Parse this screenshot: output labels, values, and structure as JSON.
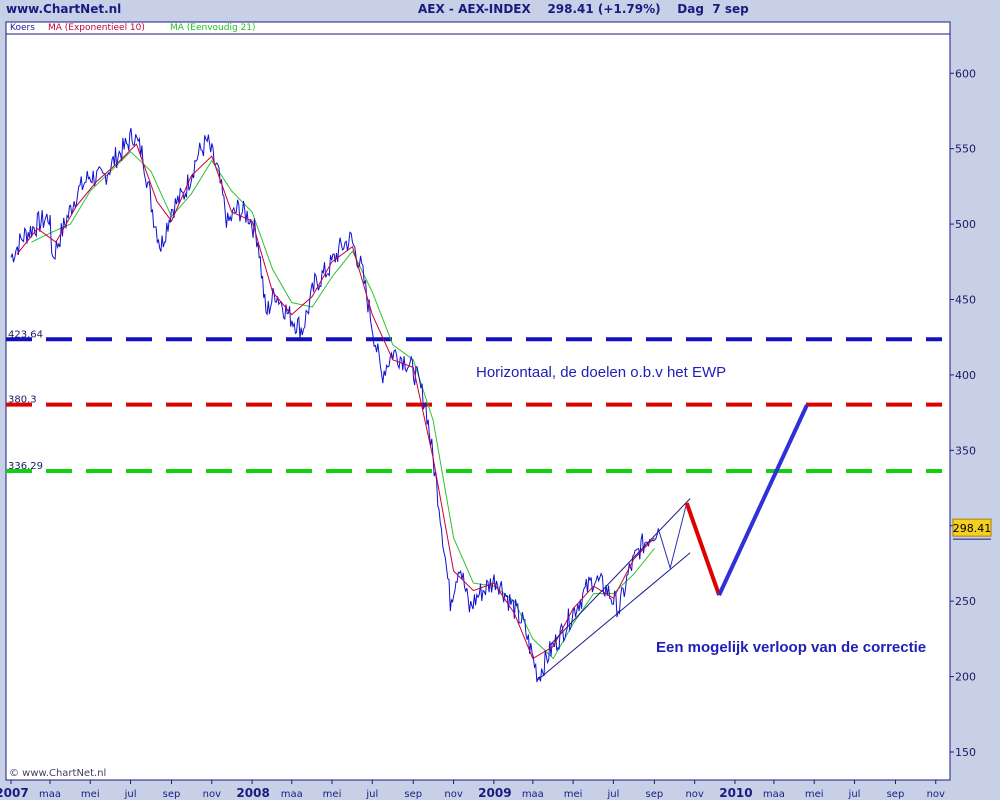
{
  "header": {
    "site": "www.ChartNet.nl",
    "title": "AEX - AEX-INDEX    298.41 (+1.79%)    Dag  7 sep"
  },
  "legend": [
    {
      "label": "Koers",
      "color": "#1A1AA0"
    },
    {
      "label": "MA (Exponentieel 10)",
      "color": "#C00040"
    },
    {
      "label": "MA (Eenvoudig 21)",
      "color": "#20C020"
    }
  ],
  "watermark": "© www.ChartNet.nl",
  "colors": {
    "price": "#1010D0",
    "ema": "#C8003C",
    "sma": "#30C030",
    "frame": "#1A1A80",
    "blue_level": "#1010C0",
    "red_level": "#E00000",
    "green_level": "#10D010",
    "annotation": "#2020B8"
  },
  "chart_data": {
    "type": "line",
    "title": "AEX - AEX-INDEX",
    "last_value_label": "298.41",
    "ylim": [
      130,
      630
    ],
    "y_ticks": [
      150,
      200,
      250,
      300,
      350,
      400,
      450,
      500,
      550,
      600
    ],
    "x_axis": {
      "start": "2007-01",
      "end": "2010-11",
      "tick_labels": [
        {
          "month": "2007-01",
          "label": "2007",
          "bold": true
        },
        {
          "month": "2007-03",
          "label": "maa"
        },
        {
          "month": "2007-05",
          "label": "mei"
        },
        {
          "month": "2007-07",
          "label": "jul"
        },
        {
          "month": "2007-09",
          "label": "sep"
        },
        {
          "month": "2007-11",
          "label": "nov"
        },
        {
          "month": "2008-01",
          "label": "2008",
          "bold": true
        },
        {
          "month": "2008-03",
          "label": "maa"
        },
        {
          "month": "2008-05",
          "label": "mei"
        },
        {
          "month": "2008-07",
          "label": "jul"
        },
        {
          "month": "2008-09",
          "label": "sep"
        },
        {
          "month": "2008-11",
          "label": "nov"
        },
        {
          "month": "2009-01",
          "label": "2009",
          "bold": true
        },
        {
          "month": "2009-03",
          "label": "maa"
        },
        {
          "month": "2009-05",
          "label": "mei"
        },
        {
          "month": "2009-07",
          "label": "jul"
        },
        {
          "month": "2009-09",
          "label": "sep"
        },
        {
          "month": "2009-11",
          "label": "nov"
        },
        {
          "month": "2010-01",
          "label": "2010",
          "bold": true
        },
        {
          "month": "2010-03",
          "label": "maa"
        },
        {
          "month": "2010-05",
          "label": "mei"
        },
        {
          "month": "2010-07",
          "label": "jul"
        },
        {
          "month": "2010-09",
          "label": "sep"
        },
        {
          "month": "2010-11",
          "label": "nov"
        }
      ]
    },
    "series": [
      {
        "name": "Koers",
        "points": [
          [
            "2007-01-01",
            478
          ],
          [
            "2007-01-20",
            492
          ],
          [
            "2007-02-10",
            500
          ],
          [
            "2007-02-28",
            505
          ],
          [
            "2007-03-05",
            478
          ],
          [
            "2007-03-20",
            496
          ],
          [
            "2007-04-10",
            520
          ],
          [
            "2007-04-30",
            532
          ],
          [
            "2007-05-20",
            530
          ],
          [
            "2007-06-10",
            545
          ],
          [
            "2007-06-25",
            552
          ],
          [
            "2007-07-05",
            560
          ],
          [
            "2007-07-20",
            545
          ],
          [
            "2007-08-05",
            505
          ],
          [
            "2007-08-16",
            485
          ],
          [
            "2007-09-01",
            510
          ],
          [
            "2007-09-20",
            520
          ],
          [
            "2007-10-10",
            545
          ],
          [
            "2007-10-25",
            555
          ],
          [
            "2007-11-10",
            535
          ],
          [
            "2007-11-25",
            500
          ],
          [
            "2007-12-10",
            510
          ],
          [
            "2007-12-28",
            505
          ],
          [
            "2008-01-10",
            490
          ],
          [
            "2008-01-22",
            440
          ],
          [
            "2008-02-05",
            455
          ],
          [
            "2008-02-25",
            440
          ],
          [
            "2008-03-17",
            430
          ],
          [
            "2008-04-05",
            460
          ],
          [
            "2008-04-25",
            470
          ],
          [
            "2008-05-15",
            485
          ],
          [
            "2008-05-30",
            490
          ],
          [
            "2008-06-15",
            470
          ],
          [
            "2008-06-30",
            435
          ],
          [
            "2008-07-15",
            400
          ],
          [
            "2008-08-01",
            415
          ],
          [
            "2008-08-20",
            410
          ],
          [
            "2008-09-05",
            400
          ],
          [
            "2008-09-20",
            380
          ],
          [
            "2008-10-10",
            315
          ],
          [
            "2008-10-27",
            250
          ],
          [
            "2008-11-10",
            275
          ],
          [
            "2008-11-25",
            245
          ],
          [
            "2008-12-10",
            255
          ],
          [
            "2009-01-05",
            265
          ],
          [
            "2009-01-25",
            250
          ],
          [
            "2009-02-15",
            235
          ],
          [
            "2009-03-09",
            200
          ],
          [
            "2009-03-25",
            215
          ],
          [
            "2009-04-15",
            230
          ],
          [
            "2009-05-10",
            250
          ],
          [
            "2009-06-01",
            265
          ],
          [
            "2009-06-20",
            258
          ],
          [
            "2009-07-10",
            245
          ],
          [
            "2009-07-25",
            270
          ],
          [
            "2009-08-10",
            285
          ],
          [
            "2009-08-25",
            293
          ],
          [
            "2009-09-07",
            298.41
          ]
        ]
      },
      {
        "name": "MA (Exponentieel 10)",
        "points": [
          [
            "2007-01-10",
            480
          ],
          [
            "2007-02-10",
            497
          ],
          [
            "2007-03-10",
            488
          ],
          [
            "2007-04-10",
            512
          ],
          [
            "2007-05-10",
            528
          ],
          [
            "2007-06-10",
            540
          ],
          [
            "2007-07-10",
            553
          ],
          [
            "2007-08-10",
            515
          ],
          [
            "2007-09-01",
            502
          ],
          [
            "2007-10-01",
            532
          ],
          [
            "2007-11-01",
            545
          ],
          [
            "2007-12-01",
            508
          ],
          [
            "2008-01-01",
            502
          ],
          [
            "2008-02-01",
            455
          ],
          [
            "2008-03-01",
            440
          ],
          [
            "2008-04-01",
            452
          ],
          [
            "2008-05-01",
            475
          ],
          [
            "2008-06-01",
            485
          ],
          [
            "2008-07-01",
            440
          ],
          [
            "2008-08-01",
            410
          ],
          [
            "2008-09-01",
            405
          ],
          [
            "2008-10-01",
            345
          ],
          [
            "2008-11-01",
            270
          ],
          [
            "2008-12-01",
            257
          ],
          [
            "2009-01-01",
            262
          ],
          [
            "2009-02-01",
            242
          ],
          [
            "2009-03-01",
            212
          ],
          [
            "2009-04-01",
            220
          ],
          [
            "2009-05-01",
            245
          ],
          [
            "2009-06-01",
            260
          ],
          [
            "2009-07-01",
            252
          ],
          [
            "2009-08-01",
            278
          ],
          [
            "2009-09-01",
            292
          ]
        ]
      },
      {
        "name": "MA (Eenvoudig 21)",
        "points": [
          [
            "2007-02-01",
            488
          ],
          [
            "2007-03-01",
            494
          ],
          [
            "2007-04-01",
            500
          ],
          [
            "2007-05-01",
            522
          ],
          [
            "2007-06-01",
            535
          ],
          [
            "2007-07-01",
            548
          ],
          [
            "2007-08-01",
            535
          ],
          [
            "2007-09-01",
            505
          ],
          [
            "2007-10-01",
            520
          ],
          [
            "2007-11-01",
            542
          ],
          [
            "2007-12-01",
            522
          ],
          [
            "2008-01-01",
            508
          ],
          [
            "2008-02-01",
            470
          ],
          [
            "2008-03-01",
            448
          ],
          [
            "2008-04-01",
            445
          ],
          [
            "2008-05-01",
            465
          ],
          [
            "2008-06-01",
            482
          ],
          [
            "2008-07-01",
            455
          ],
          [
            "2008-08-01",
            420
          ],
          [
            "2008-09-01",
            410
          ],
          [
            "2008-10-01",
            370
          ],
          [
            "2008-11-01",
            292
          ],
          [
            "2008-12-01",
            262
          ],
          [
            "2009-01-01",
            260
          ],
          [
            "2009-02-01",
            250
          ],
          [
            "2009-03-01",
            225
          ],
          [
            "2009-04-01",
            212
          ],
          [
            "2009-05-01",
            235
          ],
          [
            "2009-06-01",
            255
          ],
          [
            "2009-07-01",
            255
          ],
          [
            "2009-08-01",
            268
          ],
          [
            "2009-09-01",
            285
          ]
        ]
      }
    ],
    "horizontal_levels": [
      {
        "label": "423.64",
        "value": 423.64,
        "color": "blue"
      },
      {
        "label": "380.3",
        "value": 380.3,
        "color": "red"
      },
      {
        "label": "336.29",
        "value": 336.29,
        "color": "green"
      }
    ],
    "channel": [
      {
        "from": [
          "2009-03-09",
          198
        ],
        "to": [
          "2009-10-25",
          282
        ]
      },
      {
        "from": [
          "2009-03-25",
          220
        ],
        "to": [
          "2009-10-25",
          318
        ]
      }
    ],
    "projection": {
      "thin": [
        [
          "2009-09-07",
          298
        ],
        [
          "2009-09-25",
          272
        ],
        [
          "2009-10-20",
          315
        ]
      ],
      "red": [
        [
          "2009-10-20",
          315
        ],
        [
          "2009-12-08",
          254
        ]
      ],
      "blue": [
        [
          "2009-12-08",
          254
        ],
        [
          "2010-04-20",
          380
        ]
      ]
    },
    "annotations": [
      {
        "text": "Horizontaal, de doelen o.b.v het EWP",
        "anchor": [
          "2009-03-25",
          401
        ]
      },
      {
        "text": "Een mogelijk verloop van de correctie",
        "anchor": [
          "2009-11-10",
          220
        ]
      }
    ]
  }
}
